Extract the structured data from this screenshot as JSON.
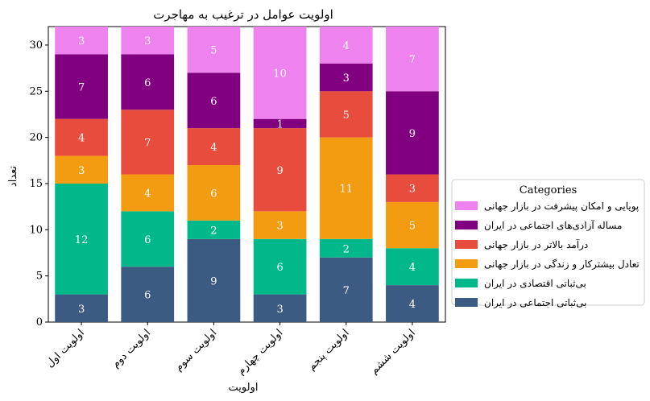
{
  "chart_data": {
    "type": "bar",
    "stacked": true,
    "title": "اولویت عوامل در ترغیب به مهاجرت",
    "xlabel": "اولویت",
    "ylabel": "تعداد",
    "ylim": [
      0,
      32
    ],
    "yticks": [
      0,
      5,
      10,
      15,
      20,
      25,
      30
    ],
    "categories": [
      "اولویت اول",
      "اولویت دوم",
      "اولویت سوم",
      "اولویت چهارم",
      "اولویت پنجم",
      "اولویت ششم"
    ],
    "legend_title": "Categories",
    "legend_position": "center-right outside",
    "series": [
      {
        "name": "بی‌ثباتی اجتماعی در ایران",
        "color": "#3b5b82",
        "values": [
          3,
          6,
          9,
          3,
          7,
          4
        ]
      },
      {
        "name": "بی‌ثباتی اقتصادی در ایران",
        "color": "#00b88a",
        "values": [
          12,
          6,
          2,
          6,
          2,
          4
        ]
      },
      {
        "name": "تعادل بیشترکار و زندگی در بازار جهانی",
        "color": "#f39c12",
        "values": [
          3,
          4,
          6,
          3,
          11,
          5
        ]
      },
      {
        "name": "درآمد بالاتر در بازار جهانی",
        "color": "#e74c3c",
        "values": [
          4,
          7,
          4,
          9,
          5,
          3
        ]
      },
      {
        "name": "مساله آزادی‌های اجتماعی در ایران",
        "color": "#800080",
        "values": [
          7,
          6,
          6,
          1,
          3,
          9
        ]
      },
      {
        "name": "پویایی و امکان پیشرفت در بازار جهانی",
        "color": "#ee82ee",
        "values": [
          3,
          3,
          5,
          10,
          4,
          7
        ]
      }
    ]
  }
}
